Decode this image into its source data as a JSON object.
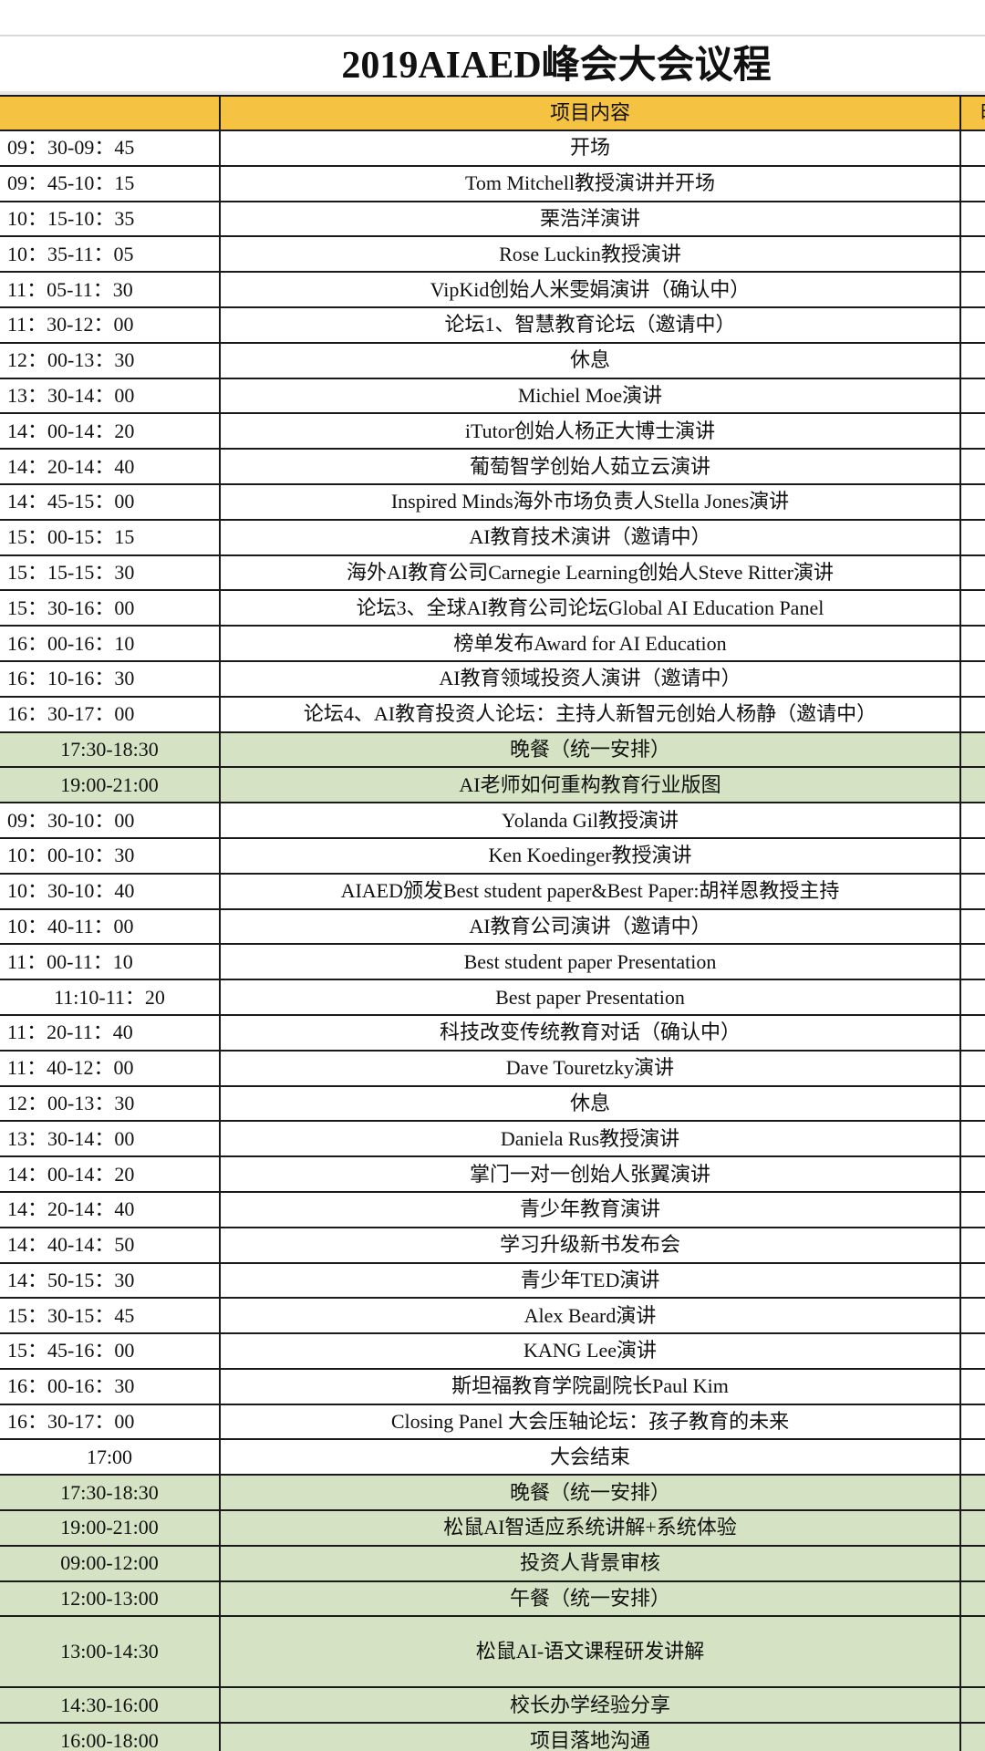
{
  "title": "2019AIAED峰会大会议程",
  "header": {
    "time_label": "",
    "item_label": "项目内容",
    "extra_label": "时"
  },
  "colors": {
    "header_bg": "#f5c242",
    "green_row_bg": "#d5e3c4"
  },
  "rows": [
    {
      "time": "09：30-09：45",
      "item": "开场",
      "green": false,
      "center": false
    },
    {
      "time": "09：45-10：15",
      "item": "Tom Mitchell教授演讲并开场",
      "green": false,
      "center": false
    },
    {
      "time": "10：15-10：35",
      "item": "栗浩洋演讲",
      "green": false,
      "center": false
    },
    {
      "time": "10：35-11：05",
      "item": "Rose Luckin教授演讲",
      "green": false,
      "center": false
    },
    {
      "time": "11：05-11：30",
      "item": "VipKid创始人米雯娟演讲（确认中）",
      "green": false,
      "center": false
    },
    {
      "time": "11：30-12：00",
      "item": "论坛1、智慧教育论坛（邀请中）",
      "green": false,
      "center": false
    },
    {
      "time": "12：00-13：30",
      "item": "休息",
      "green": false,
      "center": false
    },
    {
      "time": "13：30-14：00",
      "item": "Michiel Moe演讲",
      "green": false,
      "center": false
    },
    {
      "time": "14：00-14：20",
      "item": "iTutor创始人杨正大博士演讲",
      "green": false,
      "center": false
    },
    {
      "time": "14：20-14：40",
      "item": "葡萄智学创始人茹立云演讲",
      "green": false,
      "center": false
    },
    {
      "time": "14：45-15：00",
      "item": "Inspired Minds海外市场负责人Stella Jones演讲",
      "green": false,
      "center": false
    },
    {
      "time": "15：00-15：15",
      "item": "AI教育技术演讲（邀请中）",
      "green": false,
      "center": false
    },
    {
      "time": "15：15-15：30",
      "item": "海外AI教育公司Carnegie Learning创始人Steve Ritter演讲",
      "green": false,
      "center": false
    },
    {
      "time": "15：30-16：00",
      "item": "论坛3、全球AI教育公司论坛Global AI Education Panel",
      "green": false,
      "center": false
    },
    {
      "time": "16：00-16：10",
      "item": "榜单发布Award for AI Education",
      "green": false,
      "center": false
    },
    {
      "time": "16：10-16：30",
      "item": "AI教育领域投资人演讲（邀请中）",
      "green": false,
      "center": false
    },
    {
      "time": "16：30-17：00",
      "item": "论坛4、AI教育投资人论坛：主持人新智元创始人杨静（邀请中）",
      "green": false,
      "center": false
    },
    {
      "time": "17:30-18:30",
      "item": "晚餐（统一安排）",
      "green": true,
      "center": true
    },
    {
      "time": "19:00-21:00",
      "item": "AI老师如何重构教育行业版图",
      "green": true,
      "center": true
    },
    {
      "time": "09：30-10：00",
      "item": "Yolanda Gil教授演讲",
      "green": false,
      "center": false
    },
    {
      "time": "10：00-10：30",
      "item": "Ken Koedinger教授演讲",
      "green": false,
      "center": false
    },
    {
      "time": "10：30-10：40",
      "item": "AIAED颁发Best student paper&Best Paper:胡祥恩教授主持",
      "green": false,
      "center": false
    },
    {
      "time": "10：40-11：00",
      "item": "AI教育公司演讲（邀请中）",
      "green": false,
      "center": false
    },
    {
      "time": "11：00-11：10",
      "item": "Best student paper Presentation",
      "green": false,
      "center": false
    },
    {
      "time": "11:10-11：20",
      "item": "Best paper Presentation",
      "green": false,
      "center": true
    },
    {
      "time": "11：20-11：40",
      "item": "科技改变传统教育对话（确认中）",
      "green": false,
      "center": false
    },
    {
      "time": "11：40-12：00",
      "item": "Dave Touretzky演讲",
      "green": false,
      "center": false
    },
    {
      "time": "12：00-13：30",
      "item": "休息",
      "green": false,
      "center": false
    },
    {
      "time": "13：30-14：00",
      "item": "Daniela Rus教授演讲",
      "green": false,
      "center": false
    },
    {
      "time": "14：00-14：20",
      "item": "掌门一对一创始人张翼演讲",
      "green": false,
      "center": false
    },
    {
      "time": "14：20-14：40",
      "item": "青少年教育演讲",
      "green": false,
      "center": false
    },
    {
      "time": "14：40-14：50",
      "item": "学习升级新书发布会",
      "green": false,
      "center": false
    },
    {
      "time": "14：50-15：30",
      "item": "青少年TED演讲",
      "green": false,
      "center": false
    },
    {
      "time": "15：30-15：45",
      "item": "Alex Beard演讲",
      "green": false,
      "center": false
    },
    {
      "time": "15：45-16：00",
      "item": "KANG Lee演讲",
      "green": false,
      "center": false
    },
    {
      "time": "16：00-16：30",
      "item": "斯坦福教育学院副院长Paul Kim",
      "green": false,
      "center": false
    },
    {
      "time": "16：30-17：00",
      "item": "Closing Panel 大会压轴论坛：孩子教育的未来",
      "green": false,
      "center": false
    },
    {
      "time": "17:00",
      "item": "大会结束",
      "green": false,
      "center": true
    },
    {
      "time": "17:30-18:30",
      "item": "晚餐（统一安排）",
      "green": true,
      "center": true
    },
    {
      "time": "19:00-21:00",
      "item": "松鼠AI智适应系统讲解+系统体验",
      "green": true,
      "center": true
    },
    {
      "time": "09:00-12:00",
      "item": "投资人背景审核",
      "green": true,
      "center": true
    },
    {
      "time": "12:00-13:00",
      "item": "午餐（统一安排）",
      "green": true,
      "center": true
    },
    {
      "time": "13:00-14:30",
      "item": "松鼠AI-语文课程研发讲解",
      "green": true,
      "center": true,
      "tall": true
    },
    {
      "time": "14:30-16:00",
      "item": "校长办学经验分享",
      "green": true,
      "center": true
    },
    {
      "time": "16:00-18:00",
      "item": "项目落地沟通",
      "green": true,
      "center": true
    }
  ]
}
